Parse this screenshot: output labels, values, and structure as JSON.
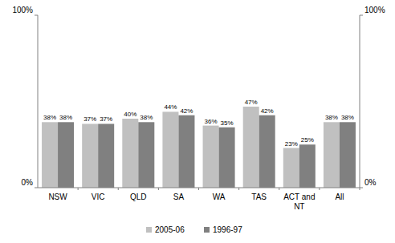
{
  "chart_data": {
    "type": "bar",
    "categories": [
      "NSW",
      "VIC",
      "QLD",
      "SA",
      "WA",
      "TAS",
      "ACT and NT",
      "All"
    ],
    "series": [
      {
        "name": "2005-06",
        "color": "#c0c0c0",
        "values": [
          38,
          37,
          40,
          44,
          36,
          47,
          23,
          38
        ],
        "value_labels": [
          "38%",
          "37%",
          "40%",
          "44%",
          "36%",
          "47%",
          "23%",
          "38%"
        ]
      },
      {
        "name": "1996-97",
        "color": "#808080",
        "values": [
          38,
          37,
          38,
          42,
          35,
          42,
          25,
          38
        ],
        "value_labels": [
          "38%",
          "37%",
          "38%",
          "42%",
          "35%",
          "42%",
          "25%",
          "38%"
        ]
      }
    ],
    "ylim": [
      0,
      100
    ],
    "yticks": [
      {
        "value": 0,
        "label": "0%"
      },
      {
        "value": 100,
        "label": "100%"
      }
    ],
    "y2lim": [
      0,
      100
    ],
    "y2ticks": [
      {
        "value": 0,
        "label": "0%"
      },
      {
        "value": 100,
        "label": "100%"
      }
    ],
    "data_labels": true,
    "grid": false,
    "legend": "bottom"
  }
}
